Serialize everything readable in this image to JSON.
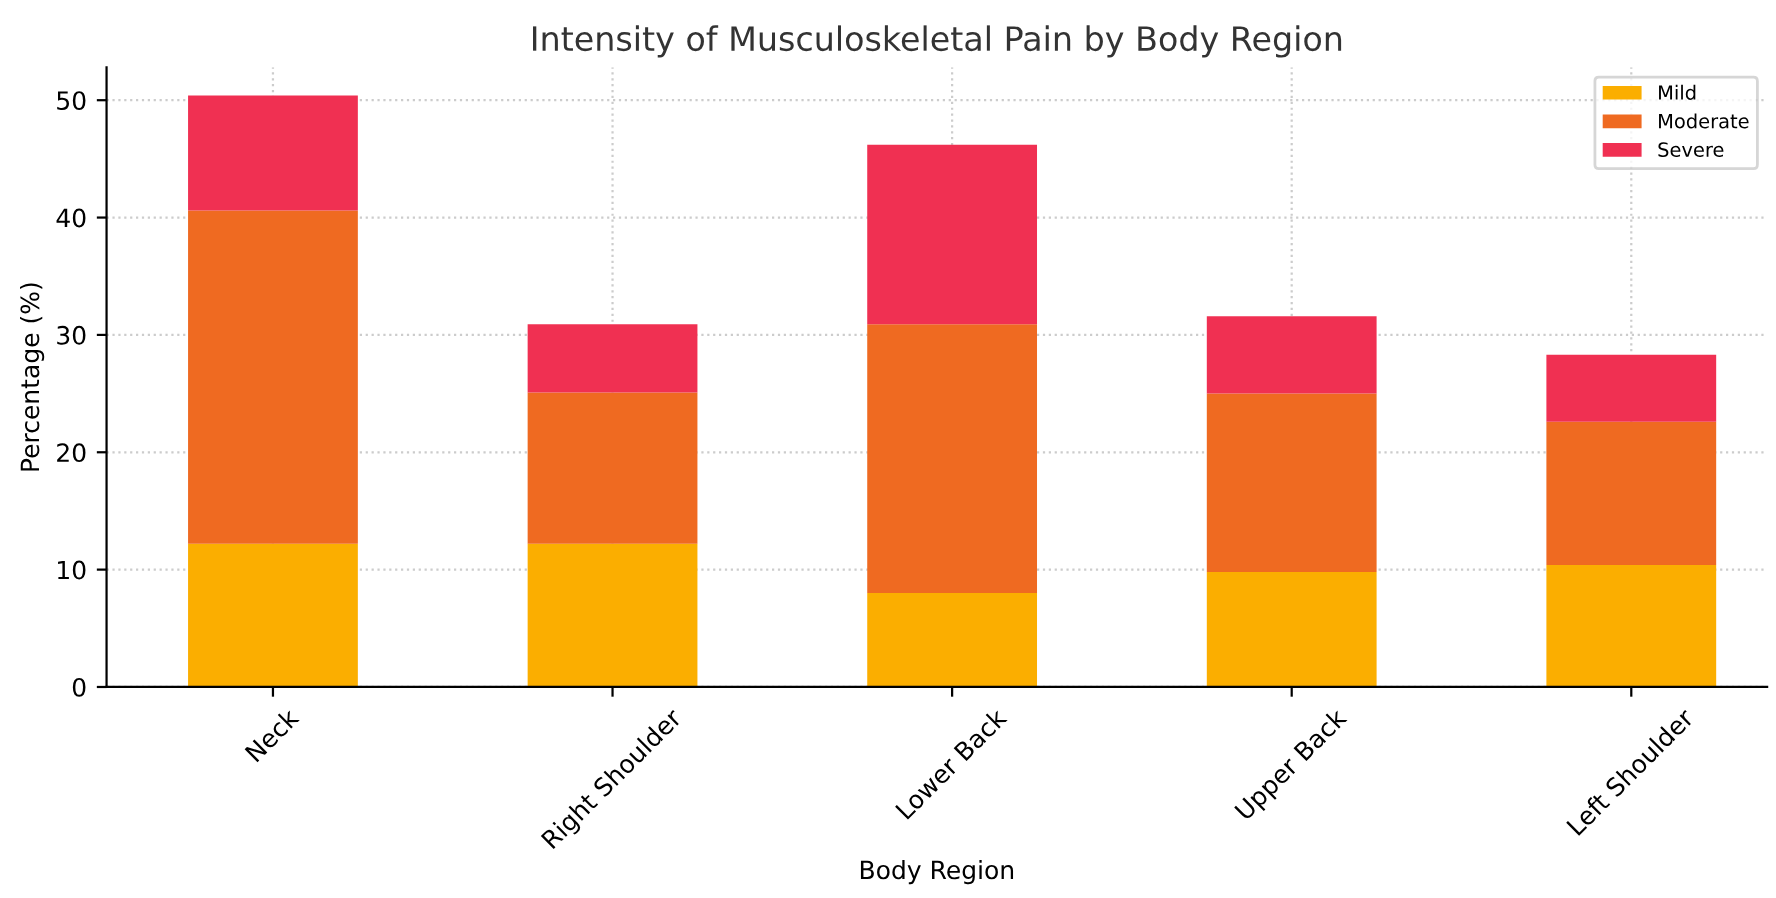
{
  "chart_data": {
    "type": "bar",
    "title": "Intensity of Musculoskeletal Pain by Body Region",
    "xlabel": "Body Region",
    "ylabel": "Percentage (%)",
    "categories": [
      "Neck",
      "Right Shoulder",
      "Lower Back",
      "Upper Back",
      "Left Shoulder"
    ],
    "series": [
      {
        "name": "Mild",
        "color": "#fbae00",
        "values": [
          12.2,
          12.2,
          8.0,
          9.8,
          10.4
        ]
      },
      {
        "name": "Moderate",
        "color": "#ef6a21",
        "values": [
          28.4,
          12.9,
          22.9,
          15.2,
          12.2
        ]
      },
      {
        "name": "Severe",
        "color": "#f03052",
        "values": [
          9.8,
          5.8,
          15.3,
          6.6,
          5.7
        ]
      }
    ],
    "stacked": true,
    "ylim": [
      0,
      52.8
    ],
    "yticks": [
      0,
      10,
      20,
      30,
      40,
      50
    ],
    "grid": true,
    "legend": "top right"
  }
}
